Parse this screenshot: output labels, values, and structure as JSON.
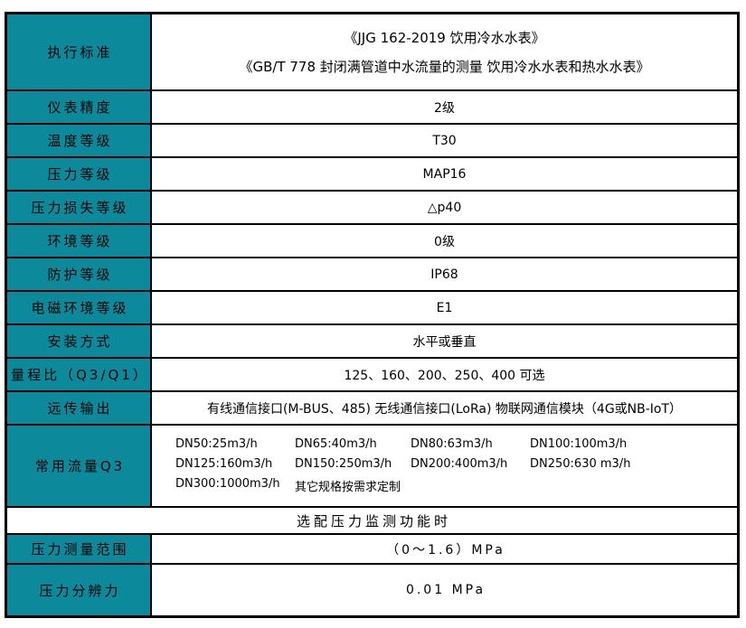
{
  "colors": {
    "header_bg": "#0c8a9b",
    "border": "#000000",
    "text": "#000000",
    "page_bg": "#ffffff"
  },
  "table": {
    "rows": [
      {
        "label": "执行标准",
        "value_lines": [
          "《JJG 162-2019 饮用冷水水表》",
          "《GB/T 778 封闭满管道中水流量的测量 饮用冷水水表和热水水表》"
        ]
      },
      {
        "label": "仪表精度",
        "value": "2级"
      },
      {
        "label": "温度等级",
        "value": "T30"
      },
      {
        "label": "压力等级",
        "value": "MAP16"
      },
      {
        "label": "压力损失等级",
        "value": "△p40"
      },
      {
        "label": "环境等级",
        "value": "0级"
      },
      {
        "label": "防护等级",
        "value": "IP68"
      },
      {
        "label": "电磁环境等级",
        "value": "E1"
      },
      {
        "label": "安装方式",
        "value": "水平或垂直"
      },
      {
        "label": "量程比（Q3/Q1）",
        "value": "125、160、200、250、400 可选"
      },
      {
        "label": "远传输出",
        "value": "有线通信接口(M-BUS、485) 无线通信接口(LoRa) 物联网通信模块（4G或NB-IoT）"
      },
      {
        "label": "常用流量Q3",
        "items": [
          "DN50:25m3/h",
          "DN65:40m3/h",
          "DN80:63m3/h",
          "DN100:100m3/h",
          "DN125:160m3/h",
          "DN150:250m3/h",
          "DN200:400m3/h",
          "DN250:630 m3/h",
          "DN300:1000m3/h",
          "其它规格按需求定制"
        ]
      },
      {
        "merged": "选配压力监测功能时"
      },
      {
        "label": "压力测量范围",
        "value": "（0～1.6）MPa"
      },
      {
        "label": "压力分辨力",
        "value": "0.01 MPa"
      }
    ]
  }
}
